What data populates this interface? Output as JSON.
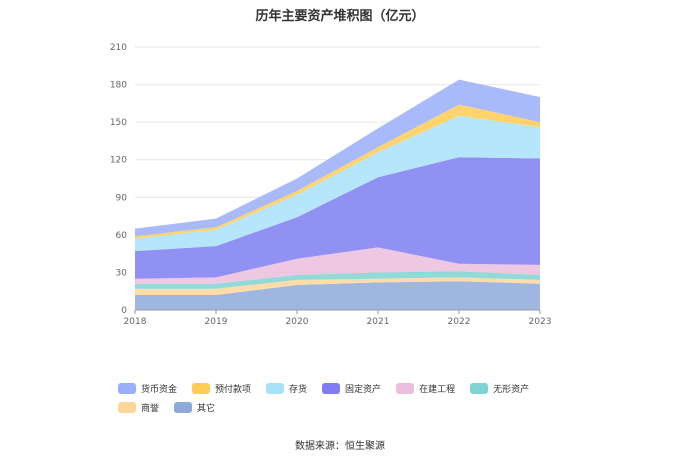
{
  "chart_data": {
    "type": "area",
    "stacked": true,
    "title": "历年主要资产堆积图（亿元）",
    "categories": [
      "2018",
      "2019",
      "2020",
      "2021",
      "2022",
      "2023"
    ],
    "ylim": [
      0,
      210
    ],
    "yticks": [
      0,
      30,
      60,
      90,
      120,
      150,
      180,
      210
    ],
    "grid": true,
    "legend_position": "bottom",
    "series": [
      {
        "name": "其它",
        "color": "#8eaadb",
        "values": [
          12,
          12,
          20,
          22,
          23,
          21
        ]
      },
      {
        "name": "商誉",
        "color": "#ffd699",
        "values": [
          5,
          5,
          4,
          3,
          3,
          3
        ]
      },
      {
        "name": "无形资产",
        "color": "#7fd3d3",
        "values": [
          4,
          4,
          4,
          5,
          5,
          4
        ]
      },
      {
        "name": "在建工程",
        "color": "#ebbede",
        "values": [
          4,
          5,
          13,
          20,
          6,
          8
        ]
      },
      {
        "name": "固定资产",
        "color": "#7e7ef2",
        "values": [
          22,
          25,
          33,
          56,
          85,
          85
        ]
      },
      {
        "name": "存货",
        "color": "#a8e2fa",
        "values": [
          10,
          13,
          18,
          20,
          33,
          25
        ]
      },
      {
        "name": "预付款项",
        "color": "#ffcc55",
        "values": [
          2,
          2,
          3,
          4,
          9,
          4
        ]
      },
      {
        "name": "货币资金",
        "color": "#9aaefa",
        "values": [
          6,
          7,
          10,
          15,
          20,
          20
        ]
      }
    ]
  },
  "legend_order": [
    "货币资金",
    "预付款项",
    "存货",
    "固定资产",
    "在建工程",
    "无形资产",
    "商誉",
    "其它"
  ],
  "source": "数据来源：恒生聚源"
}
